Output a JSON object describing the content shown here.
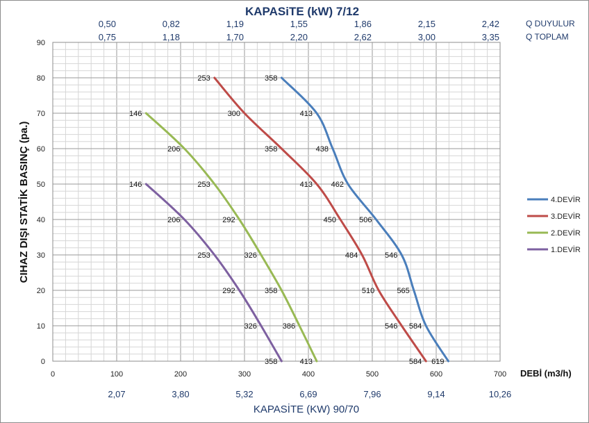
{
  "chart_data": {
    "type": "line",
    "title": "KAPASiTE (kW) 7/12",
    "xlabel": "DEBİ (m3/h)",
    "ylabel": "CIHAZ DIŞI STATİK BASINÇ (pa.)",
    "xlim": [
      0,
      700
    ],
    "ylim": [
      0,
      90
    ],
    "x_ticks": [
      "0",
      "100",
      "200",
      "300",
      "400",
      "500",
      "600",
      "700"
    ],
    "y_ticks": [
      "0",
      "10",
      "20",
      "30",
      "40",
      "50",
      "60",
      "70",
      "80",
      "90"
    ],
    "grid": true,
    "legend_position": "right",
    "top_axis": {
      "rows": [
        {
          "label": "Q DUYULUR",
          "values": [
            "0,50",
            "0,82",
            "1,19",
            "1,55",
            "1,86",
            "2,15",
            "2,42"
          ]
        },
        {
          "label": "Q TOPLAM",
          "values": [
            "0,75",
            "1,18",
            "1,70",
            "2,20",
            "2,62",
            "3,00",
            "3,35"
          ]
        }
      ]
    },
    "bottom_axis": {
      "title": "KAPASİTE (KW) 90/70",
      "values": [
        "2,07",
        "3,80",
        "5,32",
        "6,69",
        "7,96",
        "9,14",
        "10,26"
      ]
    },
    "series": [
      {
        "name": "4.DEVİR",
        "color": "#4a7ebb",
        "x": [
          358,
          413,
          438,
          462,
          506,
          546,
          565,
          584,
          619
        ],
        "y": [
          80,
          70,
          60,
          50,
          40,
          30,
          20,
          10,
          0
        ],
        "labels": [
          "358",
          "413",
          "438",
          "462",
          "506",
          "546",
          "565",
          "584",
          "619"
        ]
      },
      {
        "name": "3.DEVİR",
        "color": "#be4b48",
        "x": [
          253,
          300,
          358,
          413,
          450,
          484,
          510,
          546,
          584
        ],
        "y": [
          80,
          70,
          60,
          50,
          40,
          30,
          20,
          10,
          0
        ],
        "labels": [
          "253",
          "300",
          "358",
          "413",
          "450",
          "484",
          "510",
          "546",
          "584"
        ]
      },
      {
        "name": "2.DEVİR",
        "color": "#98b954",
        "x": [
          146,
          206,
          253,
          292,
          326,
          358,
          386,
          413
        ],
        "y": [
          70,
          60,
          50,
          40,
          30,
          20,
          10,
          0
        ],
        "labels": [
          "146",
          "206",
          "253",
          "292",
          "326",
          "358",
          "386",
          "413"
        ]
      },
      {
        "name": "1.DEVİR",
        "color": "#7d60a0",
        "x": [
          146,
          206,
          253,
          292,
          326,
          358
        ],
        "y": [
          50,
          40,
          30,
          20,
          10,
          0
        ],
        "labels": [
          "146",
          "206",
          "253",
          "292",
          "326",
          "358"
        ]
      }
    ]
  }
}
